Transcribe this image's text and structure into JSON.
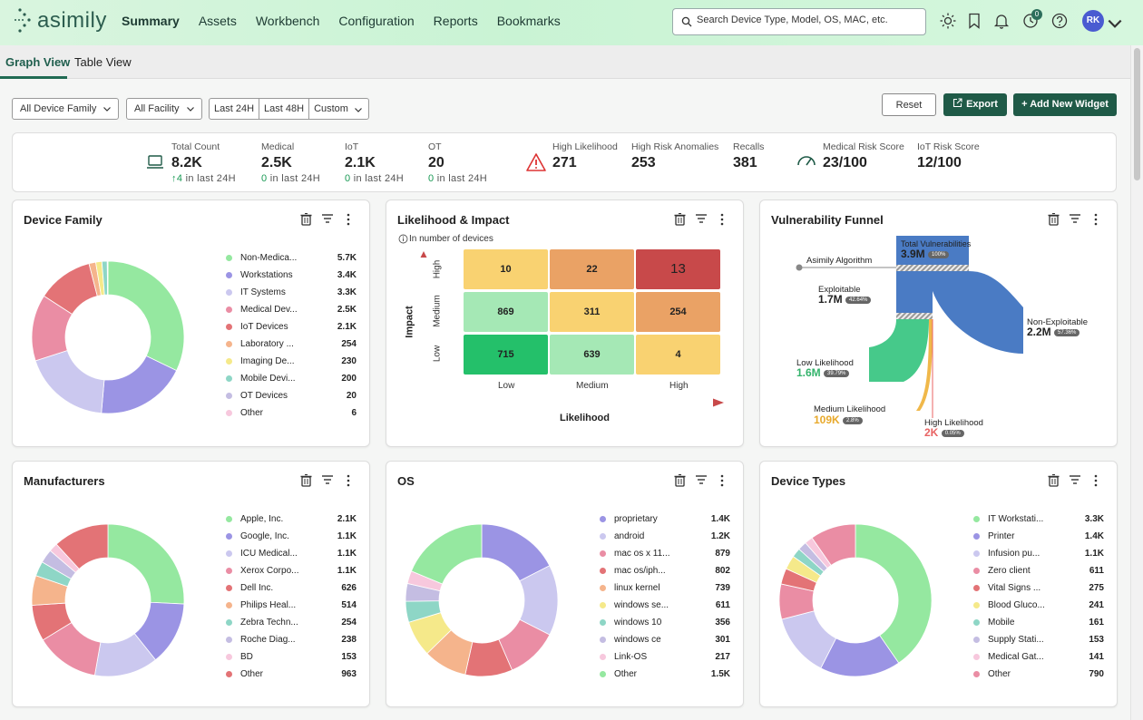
{
  "app": {
    "logo_text": "asimily"
  },
  "nav": {
    "items": [
      "Summary",
      "Assets",
      "Workbench",
      "Configuration",
      "Reports",
      "Bookmarks"
    ]
  },
  "search": {
    "placeholder": "Search Device Type, Model, OS, MAC, etc."
  },
  "header": {
    "notification_count": "0",
    "avatar_initials": "RK"
  },
  "tabs": {
    "graph": "Graph View",
    "table": "Table View"
  },
  "filters": {
    "device_family": "All Device Family",
    "facility": "All Facility",
    "last24": "Last 24H",
    "last48": "Last 48H",
    "custom": "Custom"
  },
  "toolbar": {
    "reset": "Reset",
    "export": "Export",
    "add_widget": "+ Add New Widget"
  },
  "stats": {
    "total": {
      "label": "Total Count",
      "value": "8.2K",
      "delta": "4",
      "delta_text": "in last 24H"
    },
    "medical": {
      "label": "Medical",
      "value": "2.5K",
      "delta": "0",
      "delta_text": "in last 24H"
    },
    "iot": {
      "label": "IoT",
      "value": "2.1K",
      "delta": "0",
      "delta_text": "in last 24H"
    },
    "ot": {
      "label": "OT",
      "value": "20",
      "delta": "0",
      "delta_text": "in last 24H"
    },
    "high_likelihood": {
      "label": "High Likelihood",
      "value": "271"
    },
    "high_risk": {
      "label": "High Risk Anomalies",
      "value": "253"
    },
    "recalls": {
      "label": "Recalls",
      "value": "381"
    },
    "medical_risk": {
      "label": "Medical Risk Score",
      "value": "23/100"
    },
    "iot_risk": {
      "label": "IoT Risk Score",
      "value": "12/100"
    }
  },
  "device_family": {
    "title": "Device Family",
    "items": [
      {
        "label": "Non-Medica...",
        "value": "5.7K",
        "color": "#95e8a0",
        "n": 5700
      },
      {
        "label": "Workstations",
        "value": "3.4K",
        "color": "#9b94e4",
        "n": 3400
      },
      {
        "label": "IT Systems",
        "value": "3.3K",
        "color": "#cbc8ef",
        "n": 3300
      },
      {
        "label": "Medical Dev...",
        "value": "2.5K",
        "color": "#ea8da4",
        "n": 2500
      },
      {
        "label": "IoT Devices",
        "value": "2.1K",
        "color": "#e37376",
        "n": 2100
      },
      {
        "label": "Laboratory ...",
        "value": "254",
        "color": "#f5b48c",
        "n": 254
      },
      {
        "label": "Imaging De...",
        "value": "230",
        "color": "#f5e98a",
        "n": 230
      },
      {
        "label": "Mobile Devi...",
        "value": "200",
        "color": "#8ed6c6",
        "n": 200
      },
      {
        "label": "OT Devices",
        "value": "20",
        "color": "#c4bde2",
        "n": 20
      },
      {
        "label": "Other",
        "value": "6",
        "color": "#f7c8dd",
        "n": 6
      }
    ]
  },
  "likelihood": {
    "title": "Likelihood & Impact",
    "note": "In number of devices",
    "y_axis": "Impact",
    "x_axis": "Likelihood",
    "rows": [
      "High",
      "Medium",
      "Low"
    ],
    "cols": [
      "Low",
      "Medium",
      "High"
    ],
    "cells": [
      [
        "10",
        "22",
        "13"
      ],
      [
        "869",
        "311",
        "254"
      ],
      [
        "715",
        "639",
        "4"
      ]
    ],
    "colors": [
      [
        "#f9d271",
        "#eaa265",
        "#c8494a"
      ],
      [
        "#a5e8b5",
        "#f9d271",
        "#eaa265"
      ],
      [
        "#24c06a",
        "#a5e8b5",
        "#f9d271"
      ]
    ]
  },
  "funnel": {
    "title": "Vulnerability Funnel",
    "algo": "Asimily Algorithm",
    "total": {
      "label": "Total Vulnerabilities",
      "value": "3.9M",
      "pct": "100%"
    },
    "exploitable": {
      "label": "Exploitable",
      "value": "1.7M",
      "pct": "42.64%"
    },
    "non_exploitable": {
      "label": "Non-Exploitable",
      "value": "2.2M",
      "pct": "57.36%"
    },
    "low": {
      "label": "Low Likelihood",
      "value": "1.6M",
      "pct": "39.79%"
    },
    "medium": {
      "label": "Medium Likelihood",
      "value": "109K",
      "pct": "2.8%"
    },
    "high": {
      "label": "High Likelihood",
      "value": "2K",
      "pct": "0.05%"
    }
  },
  "manufacturers": {
    "title": "Manufacturers",
    "items": [
      {
        "label": "Apple, Inc.",
        "value": "2.1K",
        "color": "#95e8a0",
        "n": 2100
      },
      {
        "label": "Google, Inc.",
        "value": "1.1K",
        "color": "#9b94e4",
        "n": 1100
      },
      {
        "label": "ICU Medical...",
        "value": "1.1K",
        "color": "#cbc8ef",
        "n": 1100
      },
      {
        "label": "Xerox Corpo...",
        "value": "1.1K",
        "color": "#ea8da4",
        "n": 1100
      },
      {
        "label": "Dell Inc.",
        "value": "626",
        "color": "#e37376",
        "n": 626
      },
      {
        "label": "Philips Heal...",
        "value": "514",
        "color": "#f5b48c",
        "n": 514
      },
      {
        "label": "Zebra Techn...",
        "value": "254",
        "color": "#8ed6c6",
        "n": 254
      },
      {
        "label": "Roche Diag...",
        "value": "238",
        "color": "#c4bde2",
        "n": 238
      },
      {
        "label": "BD",
        "value": "153",
        "color": "#f7c8dd",
        "n": 153
      },
      {
        "label": "Other",
        "value": "963",
        "color": "#e37376",
        "n": 963
      }
    ]
  },
  "os": {
    "title": "OS",
    "items": [
      {
        "label": "proprietary",
        "value": "1.4K",
        "color": "#9b94e4",
        "n": 1400
      },
      {
        "label": "android",
        "value": "1.2K",
        "color": "#cbc8ef",
        "n": 1200
      },
      {
        "label": "mac os x 11...",
        "value": "879",
        "color": "#ea8da4",
        "n": 879
      },
      {
        "label": "mac os/iph...",
        "value": "802",
        "color": "#e37376",
        "n": 802
      },
      {
        "label": "linux kernel",
        "value": "739",
        "color": "#f5b48c",
        "n": 739
      },
      {
        "label": "windows se...",
        "value": "611",
        "color": "#f5e98a",
        "n": 611
      },
      {
        "label": "windows 10",
        "value": "356",
        "color": "#8ed6c6",
        "n": 356
      },
      {
        "label": "windows ce",
        "value": "301",
        "color": "#c4bde2",
        "n": 301
      },
      {
        "label": "Link-OS",
        "value": "217",
        "color": "#f7c8dd",
        "n": 217
      },
      {
        "label": "Other",
        "value": "1.5K",
        "color": "#95e8a0",
        "n": 1500
      }
    ]
  },
  "device_types": {
    "title": "Device Types",
    "items": [
      {
        "label": "IT Workstati...",
        "value": "3.3K",
        "color": "#95e8a0",
        "n": 3300
      },
      {
        "label": "Printer",
        "value": "1.4K",
        "color": "#9b94e4",
        "n": 1400
      },
      {
        "label": "Infusion pu...",
        "value": "1.1K",
        "color": "#cbc8ef",
        "n": 1100
      },
      {
        "label": "Zero client",
        "value": "611",
        "color": "#ea8da4",
        "n": 611
      },
      {
        "label": "Vital Signs ...",
        "value": "275",
        "color": "#e37376",
        "n": 275
      },
      {
        "label": "Blood Gluco...",
        "value": "241",
        "color": "#f5e98a",
        "n": 241
      },
      {
        "label": "Mobile",
        "value": "161",
        "color": "#8ed6c6",
        "n": 161
      },
      {
        "label": "Supply Stati...",
        "value": "153",
        "color": "#c4bde2",
        "n": 153
      },
      {
        "label": "Medical Gat...",
        "value": "141",
        "color": "#f7c8dd",
        "n": 141
      },
      {
        "label": "Other",
        "value": "790",
        "color": "#ea8da4",
        "n": 790
      }
    ]
  }
}
